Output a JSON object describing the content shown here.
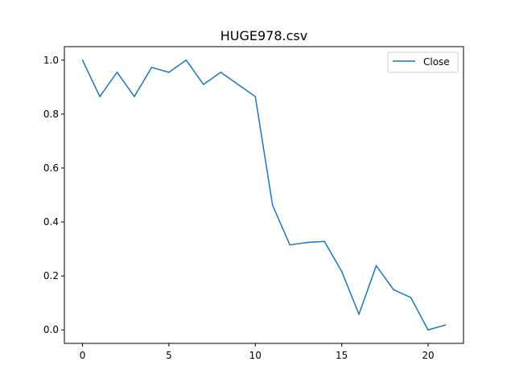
{
  "chart_data": {
    "type": "line",
    "title": "HUGE978.csv",
    "xlabel": "",
    "ylabel": "",
    "x": [
      0,
      1,
      2,
      3,
      4,
      5,
      6,
      7,
      8,
      9,
      10,
      11,
      12,
      13,
      14,
      15,
      16,
      17,
      18,
      19,
      20,
      21
    ],
    "series": [
      {
        "name": "Close",
        "color": "#1f77b4",
        "values": [
          1.0,
          0.865,
          0.955,
          0.865,
          0.973,
          0.955,
          1.0,
          0.91,
          0.955,
          0.91,
          0.865,
          0.462,
          0.315,
          0.324,
          0.328,
          0.217,
          0.058,
          0.238,
          0.149,
          0.12,
          0.0,
          0.018
        ]
      }
    ],
    "xlim": [
      -1.05,
      22.05
    ],
    "ylim": [
      -0.05,
      1.05
    ],
    "xticks": [
      "0",
      "5",
      "10",
      "15",
      "20"
    ],
    "yticks": [
      "0.0",
      "0.2",
      "0.4",
      "0.6",
      "0.8",
      "1.0"
    ],
    "grid": false,
    "legend_position": "top-right"
  }
}
